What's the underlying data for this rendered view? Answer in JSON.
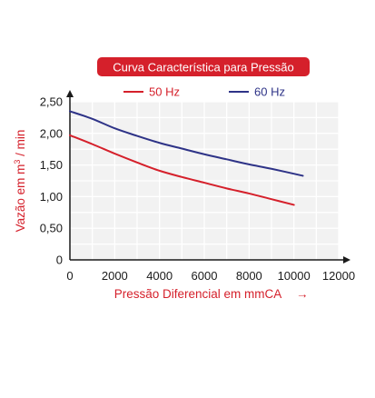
{
  "chart_data": {
    "type": "line",
    "title": "Curva Característica para Pressão",
    "xlabel": "Pressão Diferencial em mmCA",
    "xlabel_arrow": "→",
    "ylabel_main": "Vazão em m",
    "ylabel_sup": "3",
    "ylabel_tail": " / min",
    "xlim": [
      0,
      12000
    ],
    "ylim": [
      0,
      2.5
    ],
    "x_ticks": [
      0,
      2000,
      4000,
      6000,
      8000,
      10000,
      12000
    ],
    "x_tick_labels": [
      "0",
      "2000",
      "4000",
      "6000",
      "8000",
      "10000",
      "12000"
    ],
    "y_ticks": [
      0,
      0.5,
      1.0,
      1.5,
      2.0,
      2.5
    ],
    "y_tick_labels": [
      "0",
      "0,50",
      "1,00",
      "1,50",
      "2,00",
      "2,50"
    ],
    "grid": true,
    "grid_step_x": 1000,
    "grid_step_y": 0.25,
    "legend_position": "top-center",
    "series": [
      {
        "name": "50 Hz",
        "color": "#d5202b",
        "x": [
          0,
          1000,
          2000,
          3000,
          4000,
          5000,
          6000,
          7000,
          8000,
          9000,
          10000
        ],
        "y": [
          1.97,
          1.83,
          1.68,
          1.54,
          1.41,
          1.31,
          1.22,
          1.13,
          1.05,
          0.96,
          0.87
        ]
      },
      {
        "name": "60 Hz",
        "color": "#2e3387",
        "x": [
          0,
          1000,
          2000,
          3000,
          4000,
          5000,
          6000,
          7000,
          8000,
          9000,
          10400
        ],
        "y": [
          2.35,
          2.23,
          2.08,
          1.96,
          1.85,
          1.76,
          1.67,
          1.59,
          1.51,
          1.44,
          1.33
        ]
      }
    ]
  }
}
